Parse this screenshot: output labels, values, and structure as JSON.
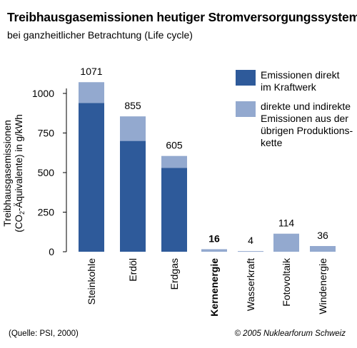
{
  "title": "Treibhausgasemissionen heutiger Stromversorgungssysteme",
  "subtitle": "bei ganzheitlicher Betrachtung (Life cycle)",
  "source": "(Quelle: PSI, 2000)",
  "copyright": "© 2005 Nuklearforum Schweiz",
  "colors": {
    "direct": "#2e5a9a",
    "indirect": "#93a9cf"
  },
  "chart_data": {
    "type": "bar",
    "stacked": true,
    "categories": [
      "Steinkohle",
      "Erdöl",
      "Erdgas",
      "Kernenergie",
      "Wasserkraft",
      "Fotovoltaik",
      "Windenergie"
    ],
    "bold_categories": [
      "Kernenergie"
    ],
    "series": [
      {
        "name": "Emissionen direkt im Kraftwerk",
        "values": [
          940,
          700,
          530,
          0,
          0,
          0,
          0
        ]
      },
      {
        "name": "direkte und indirekte Emissionen aus der übrigen Produktionskette",
        "values": [
          131,
          155,
          75,
          16,
          4,
          114,
          36
        ]
      }
    ],
    "totals": [
      "1071",
      "855",
      "605",
      "16",
      "4",
      "114",
      "36"
    ],
    "ylabel_line1": "Treibhausgasemissionen",
    "ylabel_line2_pre": "(CO",
    "ylabel_line2_sub": "2",
    "ylabel_line2_post": "-Äquivalente) in g/kWh",
    "yticks": [
      0,
      250,
      500,
      750,
      1000
    ],
    "ylim": [
      0,
      1000
    ],
    "grid": false,
    "legend_position": "top-right",
    "legend_lines": [
      [
        "Emissionen direkt",
        "im Kraftwerk"
      ],
      [
        "direkte und indirekte",
        "Emissionen aus der",
        "übrigen Produktions-",
        "kette"
      ]
    ]
  }
}
